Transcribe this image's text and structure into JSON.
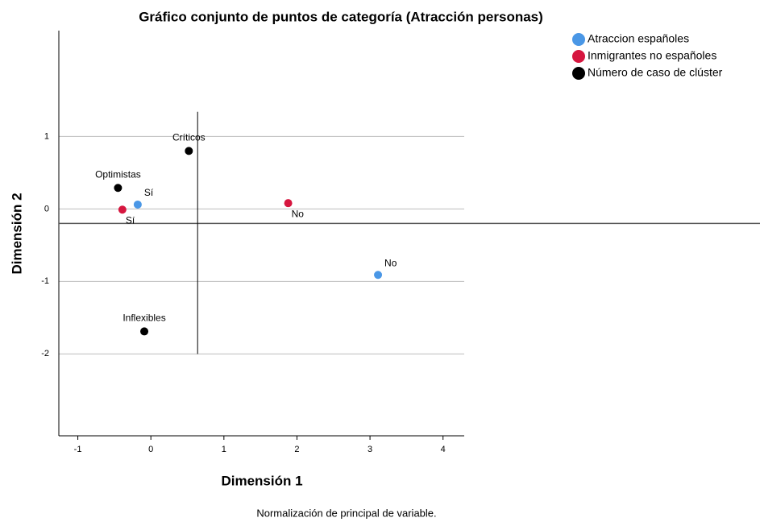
{
  "chart_data": {
    "type": "scatter",
    "title": "Gráfico conjunto de puntos de categoría (Atracción personas)",
    "xlabel": "Dimensión 1",
    "ylabel": "Dimensión 2",
    "footnote": "Normalización de principal de variable.",
    "xlim": [
      -1.26,
      4.29
    ],
    "ylim": [
      -3.13,
      2.46
    ],
    "xticks": [
      -1,
      0,
      1,
      2,
      3,
      4
    ],
    "yticks": [
      -2,
      -1,
      0,
      1
    ],
    "grid": true,
    "legend": "top-right",
    "reference_lines": {
      "x": 0.64,
      "x_span": [
        -2,
        1.34
      ],
      "y": -0.2
    },
    "series": [
      {
        "name": "Atraccion españoles",
        "color": "#4a97e6",
        "x": [
          -0.18,
          3.11
        ],
        "values": [
          0.06,
          -0.91
        ],
        "labels": [
          "Sí",
          "No"
        ]
      },
      {
        "name": "Inmigrantes no españoles",
        "color": "#d6163f",
        "x": [
          -0.39,
          1.88
        ],
        "values": [
          -0.01,
          0.08
        ],
        "labels": [
          "Sí",
          "No"
        ]
      },
      {
        "name": "Número de caso de clúster",
        "color": "#000000",
        "x": [
          0.52,
          -0.45,
          -0.09
        ],
        "values": [
          0.8,
          0.29,
          -1.69
        ],
        "labels": [
          "Críticos",
          "Optimistas",
          "Inflexibles"
        ]
      }
    ]
  }
}
